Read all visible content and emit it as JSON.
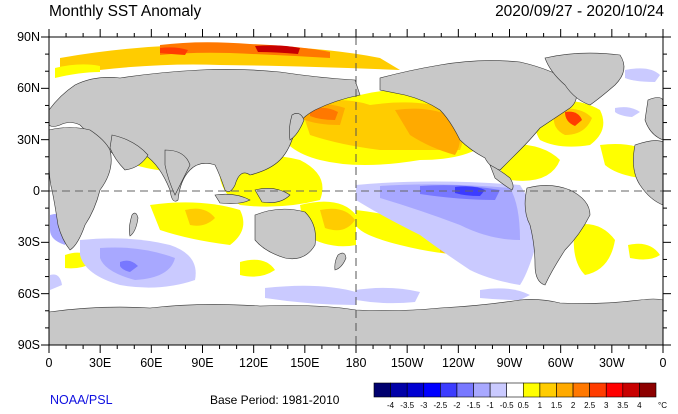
{
  "header": {
    "title": "Monthly SST Anomaly",
    "date_range": "2020/09/27 - 2020/10/24"
  },
  "axes": {
    "lat_labels": [
      "90N",
      "60N",
      "30N",
      "0",
      "30S",
      "60S",
      "90S"
    ],
    "lon_labels": [
      "0",
      "30E",
      "60E",
      "90E",
      "120E",
      "150E",
      "180",
      "150W",
      "120W",
      "90W",
      "60W",
      "30W",
      "0"
    ]
  },
  "footer": {
    "credit": "NOAA/PSL",
    "base_period": "Base Period: 1981-2010"
  },
  "colorbar": {
    "labels": [
      "-4",
      "-3.5",
      "-3",
      "-2.5",
      "-2",
      "-1.5",
      "-1",
      "-0.5",
      "0.5",
      "1",
      "1.5",
      "2",
      "2.5",
      "3",
      "3.5",
      "4"
    ],
    "unit": "°C",
    "colors": [
      "#00006e",
      "#0000a8",
      "#0000d2",
      "#0000ff",
      "#3c3cff",
      "#7878ff",
      "#a8a8ff",
      "#cacaff",
      "#ffffff",
      "#ffff00",
      "#ffcc00",
      "#ffaa00",
      "#ff7800",
      "#ff3c00",
      "#ff0000",
      "#c80000",
      "#8c0000"
    ]
  },
  "colors": {
    "land": "#c8c8c8",
    "ocean_neutral": "#ffffff",
    "credit": "#1010e0"
  }
}
